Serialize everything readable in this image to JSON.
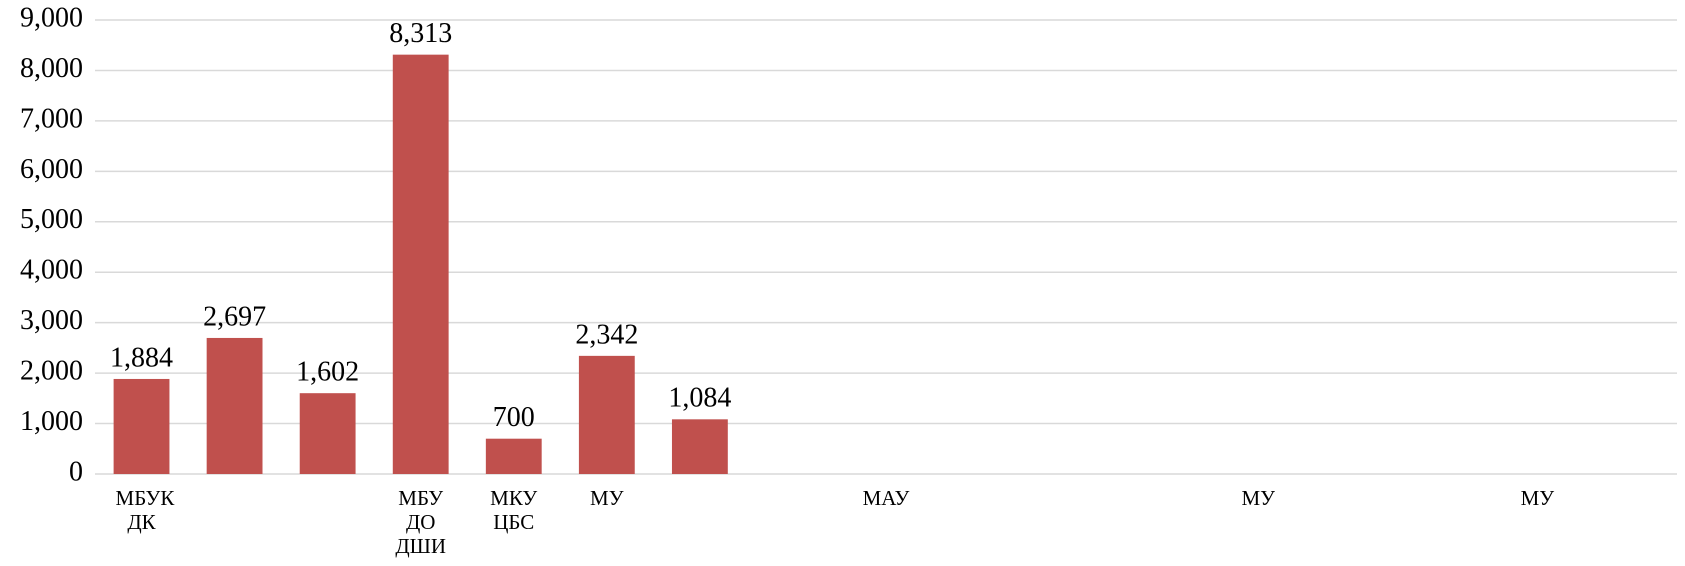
{
  "chart_data": {
    "type": "bar",
    "categories": [
      "МБУК ДК",
      null,
      null,
      "МБУ ДО ДШИ",
      "МКУ ЦБС",
      "МУ",
      null,
      null,
      "МАУ",
      null,
      null,
      null,
      "МУ",
      null,
      null,
      "МУ",
      null
    ],
    "values": [
      1884,
      2697,
      1602,
      8313,
      700,
      2342,
      1084,
      null,
      null,
      null,
      null,
      null,
      null,
      null,
      null,
      null,
      null
    ],
    "value_labels": [
      "1,884",
      "2,697",
      "1,602",
      "8,313",
      "700",
      "2,342",
      "1,084",
      null,
      null,
      null,
      null,
      null,
      null,
      null,
      null,
      null,
      null
    ],
    "color": "#c0504d",
    "ylim": [
      0,
      9000
    ],
    "yticks": [
      0,
      {
        "value": 1000,
        "label": "1,000"
      },
      {
        "value": 2000,
        "label": "2,000"
      },
      {
        "value": 3000,
        "label": "3,000"
      },
      {
        "value": 4000,
        "label": "4,000"
      },
      {
        "value": 5000,
        "label": "5,000"
      },
      {
        "value": 6000,
        "label": "6,000"
      },
      {
        "value": 7000,
        "label": "7,000"
      },
      {
        "value": 8000,
        "label": "8,000"
      },
      {
        "value": 9000,
        "label": "9,000"
      }
    ],
    "grid": true
  }
}
